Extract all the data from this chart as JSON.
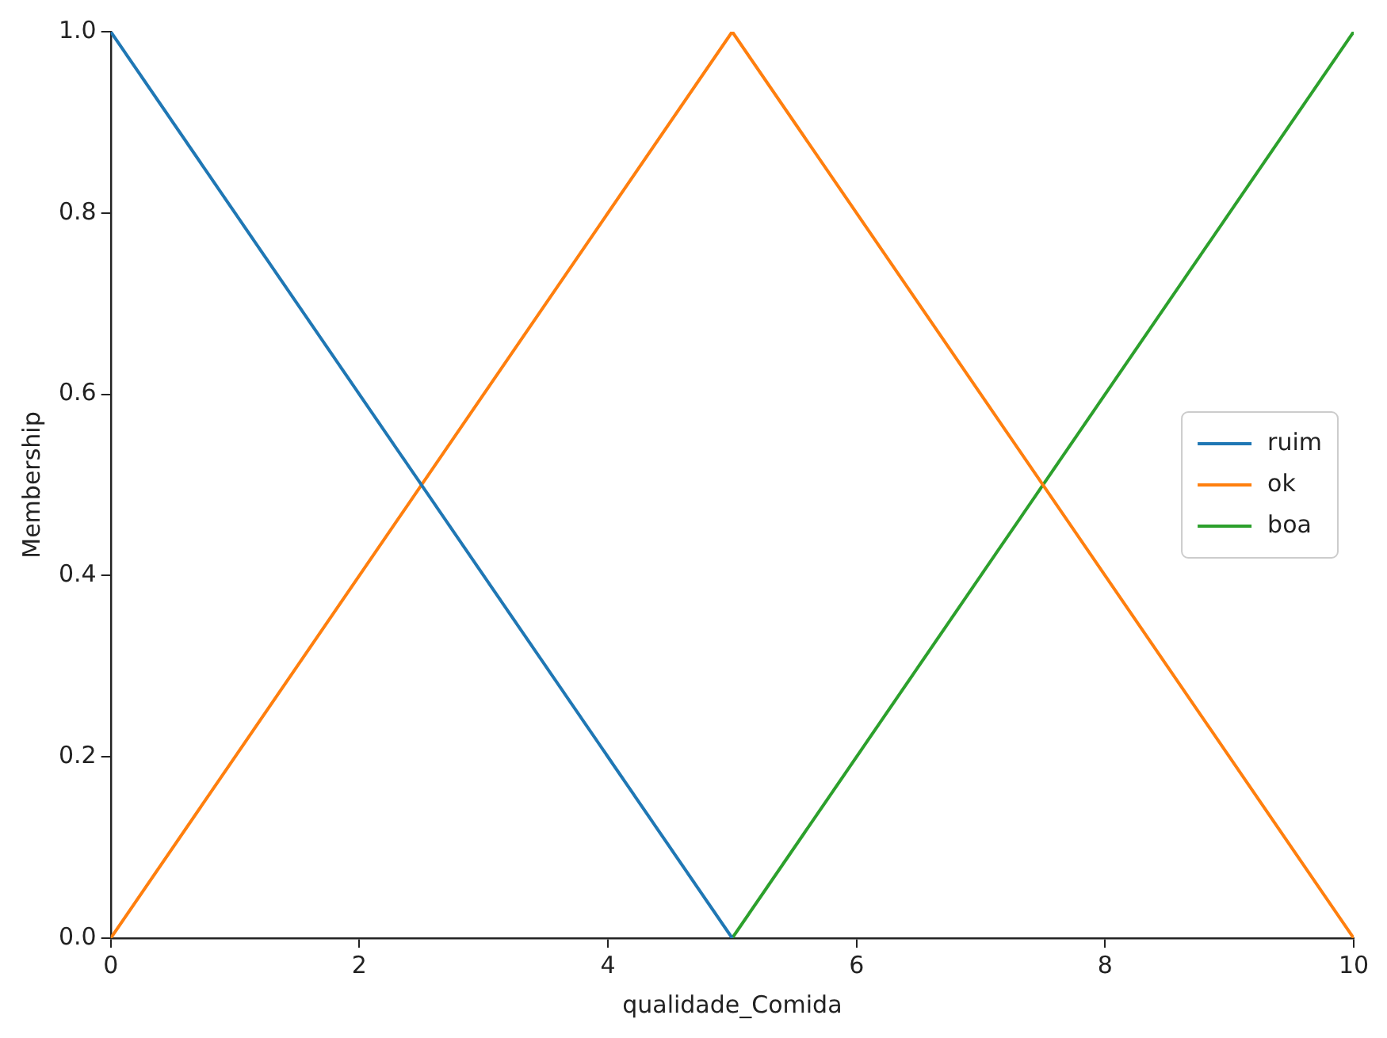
{
  "chart_data": {
    "type": "line",
    "xlabel": "qualidade_Comida",
    "ylabel": "Membership",
    "series": [
      {
        "name": "ruim",
        "color": "#1f77b4",
        "x": [
          0,
          5
        ],
        "values": [
          1,
          0
        ]
      },
      {
        "name": "ok",
        "color": "#ff7f0e",
        "x": [
          0,
          5,
          10
        ],
        "values": [
          0,
          1,
          0
        ]
      },
      {
        "name": "boa",
        "color": "#2ca02c",
        "x": [
          5,
          10
        ],
        "values": [
          0,
          1
        ]
      }
    ],
    "xlim": [
      0,
      10
    ],
    "xticks": [
      0,
      2,
      4,
      6,
      8,
      10
    ],
    "ylim": [
      0,
      1
    ],
    "yticks": [
      {
        "value": 0,
        "label": "0.0"
      },
      {
        "value": 0.2,
        "label": "0.2"
      },
      {
        "value": 0.4,
        "label": "0.4"
      },
      {
        "value": 0.6,
        "label": "0.6"
      },
      {
        "value": 0.8,
        "label": "0.8"
      },
      {
        "value": 1,
        "label": "1.0"
      }
    ],
    "grid": false,
    "legend": "right",
    "marker": "none",
    "line_style": "solid"
  }
}
